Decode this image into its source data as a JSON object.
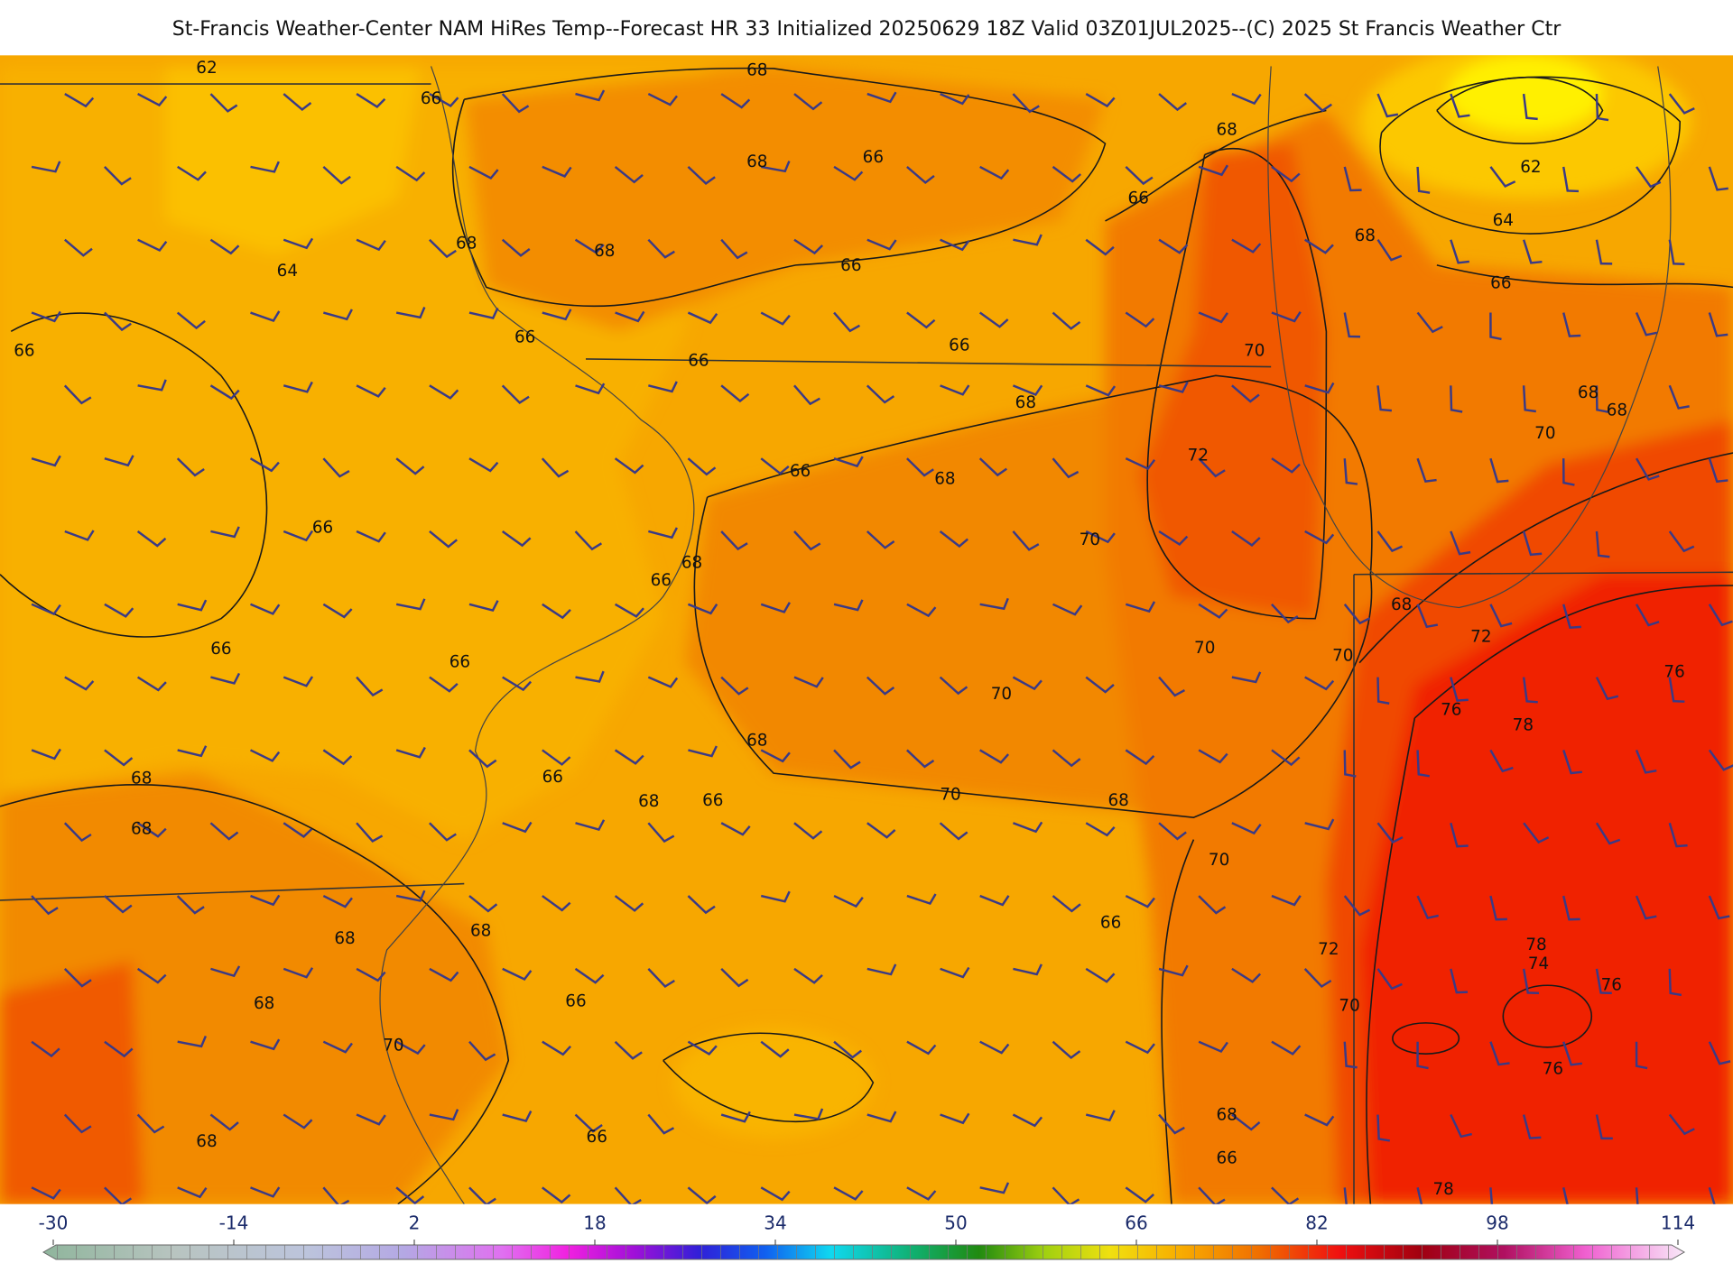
{
  "title": "St-Francis Weather-Center NAM HiRes Temp--Forecast HR 33 Initialized 20250629 18Z Valid 03Z01JUL2025--(C) 2025 St Francis Weather Ctr",
  "contour_labels": [
    62,
    66,
    68,
    68,
    66,
    68,
    66,
    68,
    68,
    66,
    64,
    68,
    62,
    64,
    66,
    66,
    66,
    66,
    66,
    70,
    68,
    68,
    68,
    70,
    72,
    66,
    68,
    66,
    70,
    68,
    66,
    68,
    72,
    66,
    66,
    70,
    70,
    76,
    70,
    76,
    78,
    68,
    68,
    66,
    68,
    66,
    70,
    68,
    68,
    70,
    66,
    68,
    68,
    78,
    72,
    74,
    76,
    68,
    66,
    70,
    70,
    76,
    68,
    68,
    66,
    66,
    78
  ],
  "colorbar": {
    "ticks": [
      -30,
      -14,
      2,
      18,
      34,
      50,
      66,
      82,
      98,
      114
    ]
  }
}
